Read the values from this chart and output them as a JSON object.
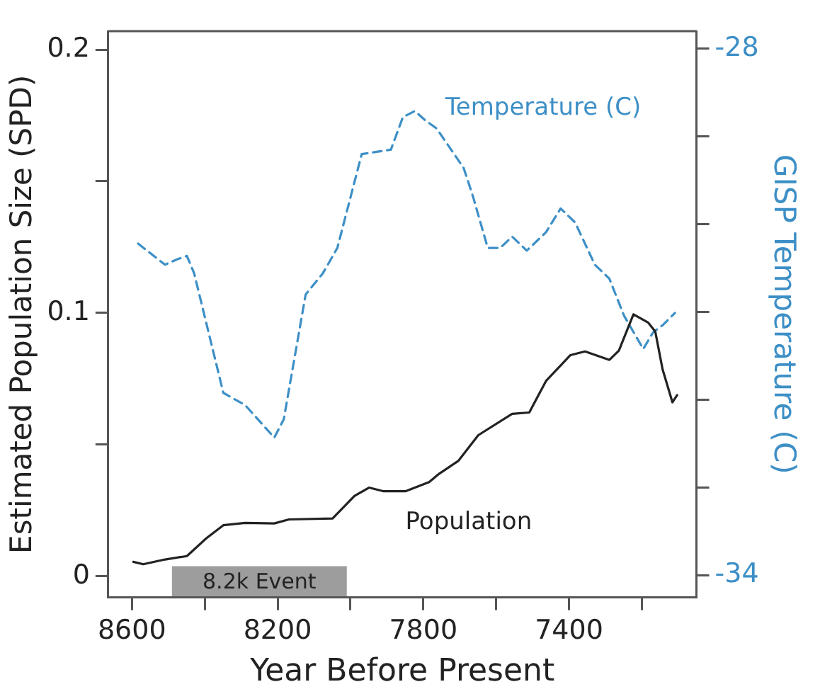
{
  "chart_data": {
    "type": "line",
    "xlabel": "Year Before Present",
    "ylabel": "Estimated Population Size (SPD)",
    "y2label": "GISP Temperature (C)",
    "xlim": [
      8665,
      7050
    ],
    "xticks": [
      8600,
      {
        "value": 8400,
        "label": null
      },
      8200,
      {
        "value": 8000,
        "label": null
      },
      7800,
      {
        "value": 7600,
        "label": null
      },
      7400,
      {
        "value": 7200,
        "label": null
      }
    ],
    "ylim": [
      -0.008,
      0.207
    ],
    "yticks": [
      0,
      {
        "value": 0.05,
        "label": null
      },
      0.1,
      {
        "value": 0.15,
        "label": null
      },
      0.2
    ],
    "y2lim": [
      -34.25,
      -27.8
    ],
    "y2ticks": [
      -34,
      {
        "value": -33,
        "label": null
      },
      {
        "value": -32,
        "label": null
      },
      {
        "value": -31,
        "label": null
      },
      {
        "value": -30,
        "label": null
      },
      {
        "value": -29,
        "label": null
      },
      -28
    ],
    "grid": false,
    "legend": false,
    "marker": "none",
    "bands": [
      {
        "axis": "x",
        "from": 8490,
        "to": 8010,
        "label": "8.2k Event",
        "color": "#8c8c8c"
      }
    ],
    "series": [
      {
        "name": "Population",
        "color": "#222222",
        "line_style": "solid",
        "x": [
          8596,
          8569,
          8509,
          8449,
          8396,
          8349,
          8289,
          8209,
          8169,
          8049,
          7989,
          7949,
          7909,
          7849,
          7784,
          7756,
          7704,
          7649,
          7556,
          7509,
          7463,
          7396,
          7356,
          7289,
          7263,
          7223,
          7183,
          7163,
          7143,
          7116,
          7103
        ],
        "values": [
          0.0055,
          0.0046,
          0.0064,
          0.0077,
          0.0144,
          0.0194,
          0.0203,
          0.0201,
          0.0216,
          0.022,
          0.0305,
          0.0337,
          0.0323,
          0.0323,
          0.0358,
          0.039,
          0.0438,
          0.0536,
          0.0617,
          0.0622,
          0.0742,
          0.084,
          0.0854,
          0.0822,
          0.0857,
          0.0995,
          0.0964,
          0.0929,
          0.0786,
          0.0661,
          0.0688
        ]
      },
      {
        "name": "Temperature (C)",
        "color": "#3d8fc6",
        "line_style": "dashed",
        "axis": "y2",
        "x": [
          8583,
          8509,
          8476,
          8449,
          8429,
          8349,
          8289,
          8209,
          8183,
          8123,
          8076,
          8036,
          7969,
          7889,
          7856,
          7823,
          7796,
          7763,
          7689,
          7663,
          7623,
          7589,
          7556,
          7516,
          7463,
          7423,
          7383,
          7329,
          7289,
          7249,
          7196,
          7169,
          7143,
          7109
        ],
        "values": [
          -30.22,
          -30.46,
          -30.4,
          -30.36,
          -30.56,
          -31.92,
          -32.06,
          -32.43,
          -32.22,
          -30.8,
          -30.56,
          -30.27,
          -29.2,
          -29.15,
          -28.78,
          -28.71,
          -28.81,
          -28.91,
          -29.36,
          -29.69,
          -30.27,
          -30.27,
          -30.14,
          -30.3,
          -30.09,
          -29.82,
          -29.98,
          -30.46,
          -30.62,
          -31.04,
          -31.42,
          -31.23,
          -31.15,
          -31.01
        ]
      }
    ]
  }
}
